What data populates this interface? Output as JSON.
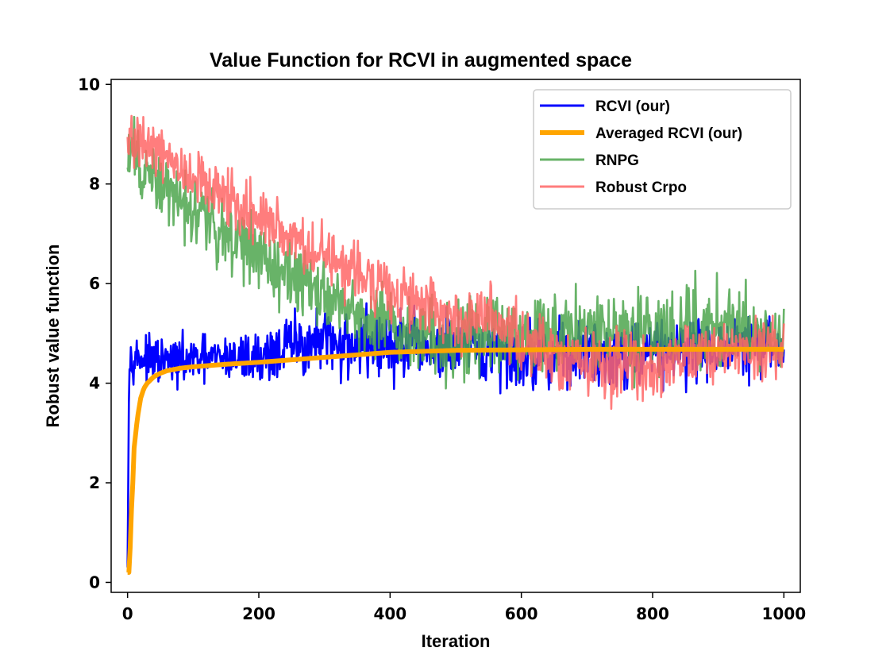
{
  "chart_data": {
    "type": "line",
    "title": "Value Function for RCVI in augmented space",
    "xlabel": "Iteration",
    "ylabel": "Robust value function",
    "xlim": [
      -25,
      1025
    ],
    "ylim": [
      -0.2,
      10.1
    ],
    "xticks": [
      0,
      200,
      400,
      600,
      800,
      1000
    ],
    "yticks": [
      0,
      2,
      4,
      6,
      8,
      10
    ],
    "grid": false,
    "legend_position": "upper right",
    "series": [
      {
        "name": "RCVI (our)",
        "color": "#0000ff",
        "noisy": true,
        "x": [
          0,
          1,
          2,
          3,
          4,
          5,
          10,
          20,
          50,
          100,
          150,
          200,
          250,
          300,
          350,
          400,
          450,
          500,
          550,
          600,
          650,
          700,
          750,
          800,
          850,
          900,
          950,
          1000
        ],
        "values": [
          0.3,
          1.9,
          3.6,
          4.4,
          4.5,
          4.5,
          4.55,
          4.5,
          4.4,
          4.45,
          4.5,
          4.5,
          4.75,
          4.8,
          4.8,
          4.75,
          4.7,
          4.65,
          4.6,
          4.55,
          4.6,
          4.6,
          4.6,
          4.7,
          4.7,
          4.7,
          4.75,
          4.7
        ],
        "noise": [
          0,
          0,
          0.2,
          0.25,
          0.25,
          0.3,
          0.3,
          0.3,
          0.35,
          0.35,
          0.35,
          0.4,
          0.5,
          0.5,
          0.55,
          0.55,
          0.55,
          0.55,
          0.5,
          0.5,
          0.5,
          0.5,
          0.5,
          0.5,
          0.5,
          0.45,
          0.45,
          0.45
        ]
      },
      {
        "name": "Averaged RCVI (our)",
        "color": "#ffa500",
        "noisy": false,
        "x": [
          0,
          3,
          5,
          8,
          10,
          15,
          20,
          25,
          30,
          40,
          50,
          60,
          80,
          100,
          150,
          200,
          250,
          300,
          350,
          400,
          500,
          600,
          700,
          800,
          900,
          1000
        ],
        "values": [
          0.2,
          0.2,
          1.2,
          2.0,
          2.7,
          3.3,
          3.7,
          3.9,
          4.0,
          4.13,
          4.2,
          4.25,
          4.3,
          4.33,
          4.38,
          4.42,
          4.47,
          4.52,
          4.57,
          4.62,
          4.66,
          4.67,
          4.68,
          4.68,
          4.68,
          4.68
        ]
      },
      {
        "name": "RNPG",
        "color": "#4da64d",
        "noisy": true,
        "x": [
          0,
          5,
          10,
          20,
          50,
          100,
          150,
          200,
          250,
          300,
          350,
          400,
          450,
          500,
          550,
          600,
          650,
          700,
          750,
          800,
          850,
          900,
          950,
          1000
        ],
        "values": [
          8.2,
          8.7,
          8.6,
          8.2,
          7.9,
          7.5,
          7.0,
          6.6,
          6.1,
          5.75,
          5.4,
          5.25,
          5.05,
          4.8,
          5.0,
          5.1,
          5.1,
          5.05,
          5.0,
          5.0,
          5.1,
          5.1,
          5.2,
          4.7
        ],
        "noise": [
          0.5,
          0.6,
          0.6,
          0.55,
          0.5,
          0.5,
          0.55,
          0.55,
          0.55,
          0.55,
          0.5,
          0.55,
          0.6,
          0.55,
          0.65,
          0.7,
          0.65,
          0.6,
          0.6,
          0.6,
          0.6,
          0.65,
          0.6,
          0.5
        ]
      },
      {
        "name": "Robust Crpo",
        "color": "#ff6666",
        "noisy": true,
        "x": [
          0,
          5,
          10,
          20,
          50,
          100,
          150,
          200,
          250,
          300,
          350,
          400,
          450,
          500,
          550,
          600,
          650,
          700,
          750,
          800,
          850,
          900,
          950,
          1000
        ],
        "values": [
          8.6,
          8.9,
          8.8,
          8.7,
          8.6,
          8.1,
          7.7,
          7.3,
          6.9,
          6.6,
          6.2,
          5.9,
          5.6,
          5.2,
          5.4,
          4.8,
          4.6,
          4.4,
          4.3,
          4.3,
          4.6,
          4.7,
          4.7,
          4.7
        ],
        "noise": [
          0.35,
          0.4,
          0.4,
          0.4,
          0.4,
          0.4,
          0.45,
          0.45,
          0.45,
          0.45,
          0.45,
          0.45,
          0.45,
          0.45,
          0.45,
          0.5,
          0.5,
          0.5,
          0.55,
          0.6,
          0.5,
          0.45,
          0.45,
          0.45
        ]
      }
    ]
  }
}
